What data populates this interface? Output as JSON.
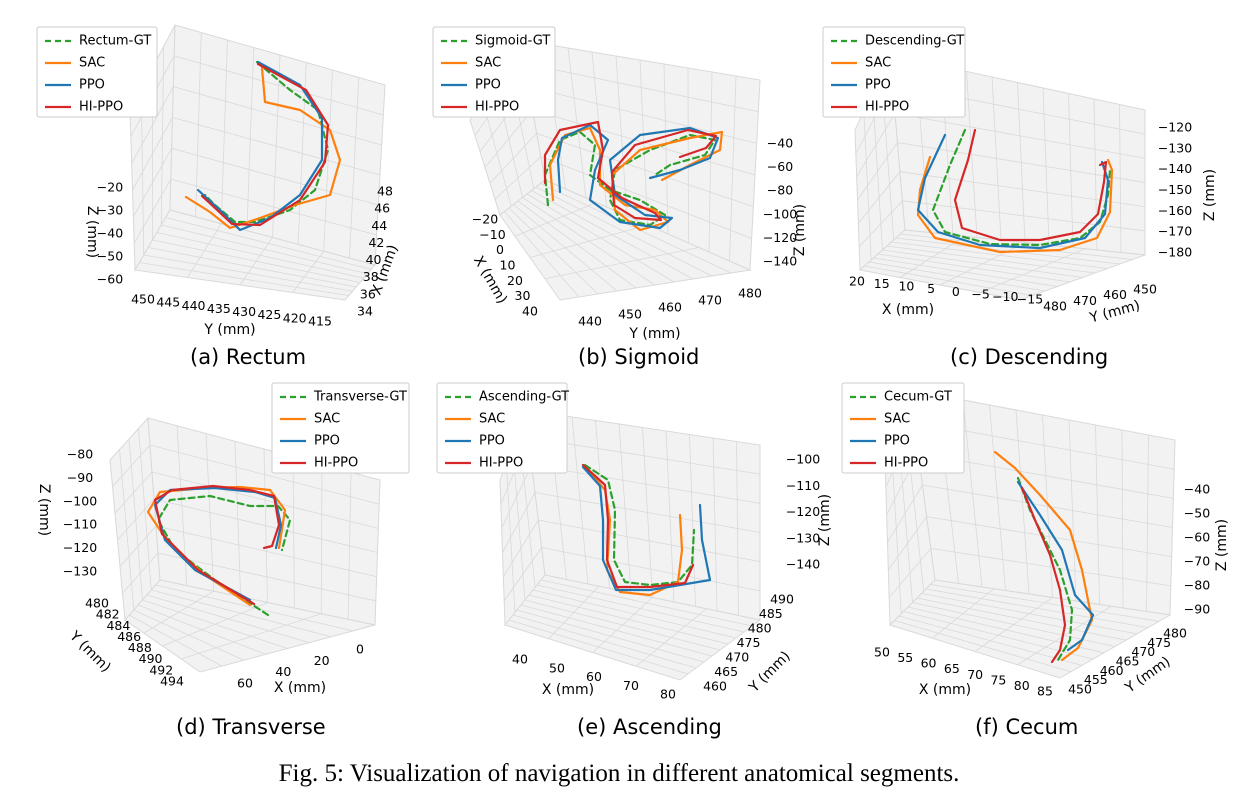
{
  "figure_caption": "Fig. 5: Visualization of navigation in different anatomical segments.",
  "colors": {
    "GT": "#2ca02c",
    "SAC": "#ff7f0e",
    "PPO": "#1f77b4",
    "HI-PPO": "#d62728",
    "grid": "#d9d9d9",
    "pane": "#f2f2f2"
  },
  "chart_data": [
    {
      "type": "line",
      "caption": "(a) Rectum",
      "legend": [
        "Rectum-GT",
        "SAC",
        "PPO",
        "HI-PPO"
      ],
      "axes": {
        "z": {
          "label": "Z (mm)",
          "ticks": [
            "−20",
            "−30",
            "−40",
            "−50",
            "−60"
          ]
        },
        "y": {
          "label": "Y (mm)",
          "ticks": [
            "450",
            "445",
            "440",
            "435",
            "430",
            "425",
            "420",
            "415"
          ]
        },
        "x": {
          "label": "X (mm)",
          "ticks": [
            "48",
            "46",
            "44",
            "42",
            "40",
            "38",
            "36",
            "34"
          ]
        }
      }
    },
    {
      "type": "line",
      "caption": "(b) Sigmoid",
      "legend": [
        "Sigmoid-GT",
        "SAC",
        "PPO",
        "HI-PPO"
      ],
      "axes": {
        "z": {
          "label": "Z (mm)",
          "ticks": [
            "−40",
            "−60",
            "−80",
            "−100",
            "−120",
            "−140"
          ]
        },
        "y": {
          "label": "Y (mm)",
          "ticks": [
            "440",
            "450",
            "460",
            "470",
            "480"
          ]
        },
        "x": {
          "label": "X (mm)",
          "ticks": [
            "−20",
            "−10",
            "0",
            "10",
            "20",
            "30",
            "40"
          ]
        }
      }
    },
    {
      "type": "line",
      "caption": "(c) Descending",
      "legend": [
        "Descending-GT",
        "SAC",
        "PPO",
        "HI-PPO"
      ],
      "axes": {
        "z": {
          "label": "Z (mm)",
          "ticks": [
            "−120",
            "−130",
            "−140",
            "−150",
            "−160",
            "−170",
            "−180"
          ]
        },
        "y": {
          "label": "Y (mm)",
          "ticks": [
            "480",
            "470",
            "460",
            "450"
          ]
        },
        "x": {
          "label": "X (mm)",
          "ticks": [
            "20",
            "15",
            "10",
            "5",
            "0",
            "−5",
            "−10",
            "−15"
          ]
        }
      }
    },
    {
      "type": "line",
      "caption": "(d) Transverse",
      "legend": [
        "Transverse-GT",
        "SAC",
        "PPO",
        "HI-PPO"
      ],
      "axes": {
        "z": {
          "label": "Z (mm)",
          "ticks": [
            "−80",
            "−90",
            "−100",
            "−110",
            "−120",
            "−130"
          ]
        },
        "y": {
          "label": "Y (mm)",
          "ticks": [
            "480",
            "482",
            "484",
            "486",
            "488",
            "490",
            "492",
            "494"
          ]
        },
        "x": {
          "label": "X (mm)",
          "ticks": [
            "60",
            "40",
            "20",
            "0"
          ]
        }
      }
    },
    {
      "type": "line",
      "caption": "(e) Ascending",
      "legend": [
        "Ascending-GT",
        "SAC",
        "PPO",
        "HI-PPO"
      ],
      "axes": {
        "z": {
          "label": "Z (mm)",
          "ticks": [
            "−100",
            "−110",
            "−120",
            "−130",
            "−140"
          ]
        },
        "y": {
          "label": "Y (mm)",
          "ticks": [
            "490",
            "485",
            "480",
            "475",
            "470",
            "465",
            "460"
          ]
        },
        "x": {
          "label": "X (mm)",
          "ticks": [
            "40",
            "50",
            "60",
            "70",
            "80"
          ]
        }
      }
    },
    {
      "type": "line",
      "caption": "(f) Cecum",
      "legend": [
        "Cecum-GT",
        "SAC",
        "PPO",
        "HI-PPO"
      ],
      "axes": {
        "z": {
          "label": "Z (mm)",
          "ticks": [
            "−40",
            "−50",
            "−60",
            "−70",
            "−80",
            "−90"
          ]
        },
        "y": {
          "label": "Y (mm)",
          "ticks": [
            "450",
            "455",
            "460",
            "465",
            "470",
            "475",
            "480"
          ]
        },
        "x": {
          "label": "X (mm)",
          "ticks": [
            "50",
            "55",
            "60",
            "65",
            "70",
            "75",
            "80",
            "85"
          ]
        }
      }
    }
  ]
}
